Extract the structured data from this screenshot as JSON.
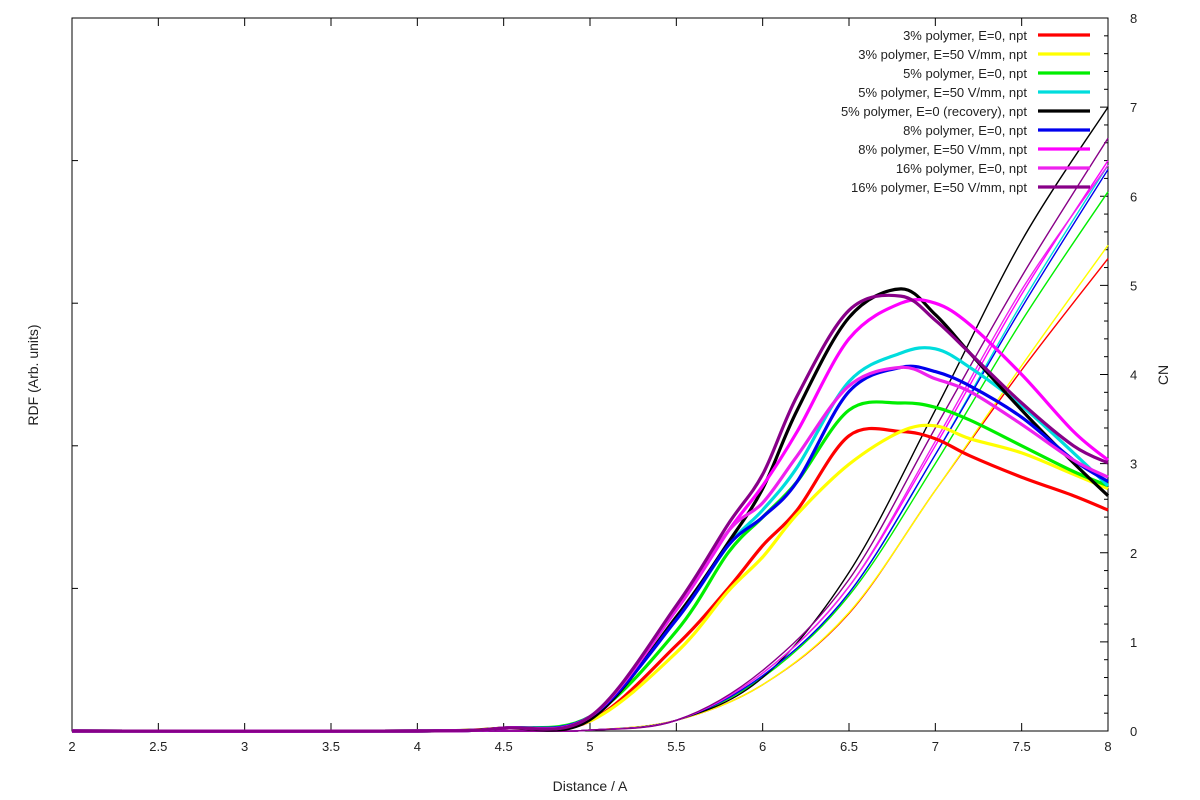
{
  "chart_data": {
    "type": "line",
    "title": "",
    "xlabel": "Distance / A",
    "ylabel_left": "RDF (Arb. units)",
    "ylabel_right": "CN",
    "xlim": [
      2,
      8
    ],
    "ylim_right": [
      0,
      8
    ],
    "ylim_left": [
      0,
      5
    ],
    "x_ticks": [
      "2",
      "2.5",
      "3",
      "3.5",
      "4",
      "4.5",
      "5",
      "5.5",
      "6",
      "6.5",
      "7",
      "7.5",
      "8"
    ],
    "y_right_ticks": [
      "0",
      "1",
      "2",
      "3",
      "4",
      "5",
      "6",
      "7",
      "8"
    ],
    "y_left_ticks_labeled": false,
    "grid": false,
    "legend_position": "top-right",
    "rdf_x": [
      4.5,
      5.0,
      5.5,
      5.8,
      6.0,
      6.2,
      6.5,
      6.8,
      7.0,
      7.2,
      7.5,
      7.8,
      8.0
    ],
    "cn_x": [
      5.0,
      5.5,
      6.0,
      6.5,
      7.0,
      7.5,
      8.0
    ],
    "series": [
      {
        "name": "3% polymer, E=0, npt",
        "color": "#ff0000",
        "rdf": [
          0.02,
          0.07,
          0.6,
          1.0,
          1.3,
          1.55,
          2.07,
          2.1,
          2.05,
          1.93,
          1.78,
          1.65,
          1.55
        ],
        "cn": [
          0.01,
          0.12,
          0.52,
          1.32,
          2.7,
          4.05,
          5.3
        ]
      },
      {
        "name": "3% polymer, E=50 V/mm, npt",
        "color": "#ffff00",
        "rdf": [
          0.02,
          0.07,
          0.55,
          0.98,
          1.22,
          1.52,
          1.87,
          2.1,
          2.14,
          2.05,
          1.95,
          1.8,
          1.7
        ],
        "cn": [
          0.01,
          0.12,
          0.52,
          1.33,
          2.7,
          4.1,
          5.45
        ]
      },
      {
        "name": "5% polymer, E=0, npt",
        "color": "#00ee00",
        "rdf": [
          0.02,
          0.1,
          0.7,
          1.25,
          1.5,
          1.75,
          2.25,
          2.3,
          2.27,
          2.18,
          2.0,
          1.82,
          1.72
        ],
        "cn": [
          0.01,
          0.12,
          0.6,
          1.52,
          3.0,
          4.6,
          6.05
        ]
      },
      {
        "name": "5% polymer, E=50 V/mm, npt",
        "color": "#00dddd",
        "rdf": [
          0.02,
          0.1,
          0.78,
          1.3,
          1.55,
          1.85,
          2.45,
          2.65,
          2.68,
          2.55,
          2.28,
          1.95,
          1.72
        ],
        "cn": [
          0.01,
          0.12,
          0.62,
          1.55,
          3.1,
          4.8,
          6.35
        ]
      },
      {
        "name": "5% polymer, E=0 (recovery), npt",
        "color": "#000000",
        "rdf": [
          0.02,
          0.08,
          0.8,
          1.32,
          1.7,
          2.25,
          2.9,
          3.1,
          2.92,
          2.65,
          2.25,
          1.88,
          1.65
        ],
        "cn": [
          0.01,
          0.12,
          0.6,
          1.78,
          3.6,
          5.5,
          7.0
        ]
      },
      {
        "name": "8% polymer, E=0, npt",
        "color": "#0000ee",
        "rdf": [
          0.02,
          0.1,
          0.78,
          1.3,
          1.5,
          1.75,
          2.38,
          2.55,
          2.52,
          2.42,
          2.2,
          1.9,
          1.75
        ],
        "cn": [
          0.01,
          0.12,
          0.62,
          1.55,
          3.1,
          4.75,
          6.3
        ]
      },
      {
        "name": "8% polymer, E=50 V/mm, npt",
        "color": "#ff00ff",
        "rdf": [
          0.02,
          0.1,
          0.85,
          1.4,
          1.72,
          2.1,
          2.75,
          3.0,
          3.0,
          2.85,
          2.5,
          2.1,
          1.9
        ],
        "cn": [
          0.01,
          0.12,
          0.65,
          1.62,
          3.2,
          4.9,
          6.4
        ]
      },
      {
        "name": "16% polymer, E=0, npt",
        "color": "#ee22ee",
        "rdf": [
          0.02,
          0.1,
          0.85,
          1.4,
          1.6,
          1.93,
          2.42,
          2.55,
          2.47,
          2.38,
          2.15,
          1.9,
          1.78
        ],
        "cn": [
          0.01,
          0.12,
          0.65,
          1.62,
          3.25,
          4.95,
          6.35
        ]
      },
      {
        "name": "16% polymer, E=50 V/mm, npt",
        "color": "#880088",
        "rdf": [
          0.02,
          0.1,
          0.88,
          1.45,
          1.8,
          2.35,
          2.95,
          3.05,
          2.88,
          2.65,
          2.3,
          2.0,
          1.88
        ],
        "cn": [
          0.01,
          0.12,
          0.68,
          1.7,
          3.4,
          5.1,
          6.65
        ]
      }
    ]
  }
}
